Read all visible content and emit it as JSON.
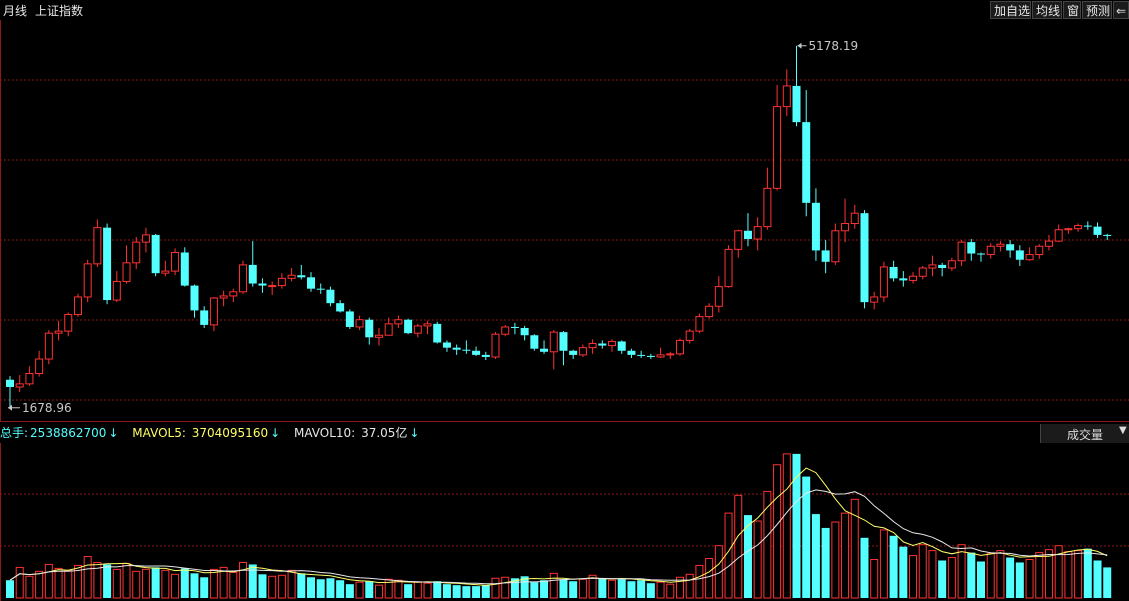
{
  "header": {
    "period": "月线",
    "index_name": "上证指数",
    "buttons": [
      "加自选",
      "均线",
      "窗",
      "预测"
    ],
    "back_arrow": "⇐"
  },
  "chart_data": {
    "type": "candlestick",
    "period": "monthly",
    "high_annotation": "5178.19",
    "low_annotation": "1678.96",
    "y_range": [
      1580,
      5350
    ],
    "candles": [
      [
        1950,
        1880,
        1985,
        1678.96
      ],
      [
        1880,
        1910,
        1995,
        1830
      ],
      [
        1910,
        2010,
        2080,
        1890
      ],
      [
        2010,
        2150,
        2230,
        1980
      ],
      [
        2150,
        2400,
        2430,
        2100
      ],
      [
        2400,
        2420,
        2520,
        2330
      ],
      [
        2420,
        2580,
        2600,
        2370
      ],
      [
        2580,
        2750,
        2780,
        2560
      ],
      [
        2750,
        3070,
        3110,
        2700
      ],
      [
        3070,
        3420,
        3500,
        3040
      ],
      [
        3420,
        2720,
        3460,
        2680
      ],
      [
        2720,
        2900,
        3000,
        2700
      ],
      [
        2900,
        3080,
        3250,
        2880
      ],
      [
        3080,
        3280,
        3330,
        3020
      ],
      [
        3280,
        3350,
        3420,
        3180
      ],
      [
        3350,
        2980,
        3360,
        2950
      ],
      [
        2980,
        3000,
        3100,
        2950
      ],
      [
        3000,
        3180,
        3220,
        2960
      ],
      [
        3180,
        2860,
        3230,
        2850
      ],
      [
        2860,
        2620,
        2870,
        2550
      ],
      [
        2620,
        2480,
        2660,
        2450
      ],
      [
        2480,
        2740,
        2750,
        2420
      ],
      [
        2740,
        2760,
        2810,
        2660
      ],
      [
        2760,
        2800,
        2830,
        2700
      ],
      [
        2800,
        3060,
        3100,
        2780
      ],
      [
        3060,
        2880,
        3290,
        2850
      ],
      [
        2880,
        2860,
        2930,
        2790
      ],
      [
        2860,
        2860,
        2900,
        2770
      ],
      [
        2860,
        2930,
        2980,
        2830
      ],
      [
        2930,
        2960,
        3030,
        2900
      ],
      [
        2960,
        2940,
        3060,
        2920
      ],
      [
        2940,
        2830,
        2990,
        2800
      ],
      [
        2830,
        2820,
        2880,
        2780
      ],
      [
        2820,
        2690,
        2850,
        2660
      ],
      [
        2690,
        2610,
        2720,
        2600
      ],
      [
        2610,
        2460,
        2630,
        2440
      ],
      [
        2460,
        2530,
        2570,
        2430
      ],
      [
        2530,
        2360,
        2550,
        2290
      ],
      [
        2360,
        2380,
        2450,
        2280
      ],
      [
        2380,
        2490,
        2550,
        2380
      ],
      [
        2490,
        2530,
        2570,
        2450
      ],
      [
        2530,
        2400,
        2540,
        2390
      ],
      [
        2400,
        2470,
        2490,
        2360
      ],
      [
        2470,
        2490,
        2520,
        2390
      ],
      [
        2490,
        2310,
        2510,
        2300
      ],
      [
        2310,
        2260,
        2330,
        2220
      ],
      [
        2260,
        2240,
        2290,
        2190
      ],
      [
        2240,
        2230,
        2330,
        2200
      ],
      [
        2230,
        2190,
        2270,
        2180
      ],
      [
        2190,
        2170,
        2220,
        2140
      ],
      [
        2170,
        2390,
        2410,
        2150
      ],
      [
        2390,
        2460,
        2480,
        2370
      ],
      [
        2460,
        2450,
        2500,
        2390
      ],
      [
        2450,
        2380,
        2470,
        2330
      ],
      [
        2380,
        2250,
        2390,
        2230
      ],
      [
        2250,
        2220,
        2330,
        2200
      ],
      [
        2220,
        2410,
        2430,
        2050
      ],
      [
        2410,
        2230,
        2420,
        2090
      ],
      [
        2230,
        2190,
        2240,
        2150
      ],
      [
        2190,
        2260,
        2290,
        2170
      ],
      [
        2260,
        2300,
        2340,
        2200
      ],
      [
        2300,
        2280,
        2330,
        2250
      ],
      [
        2280,
        2320,
        2340,
        2220
      ],
      [
        2320,
        2230,
        2330,
        2200
      ],
      [
        2230,
        2190,
        2250,
        2160
      ],
      [
        2190,
        2180,
        2230,
        2160
      ],
      [
        2180,
        2170,
        2200,
        2150
      ],
      [
        2170,
        2190,
        2260,
        2160
      ],
      [
        2190,
        2200,
        2220,
        2150
      ],
      [
        2200,
        2330,
        2350,
        2180
      ],
      [
        2330,
        2420,
        2440,
        2300
      ],
      [
        2420,
        2560,
        2590,
        2400
      ],
      [
        2560,
        2660,
        2690,
        2540
      ],
      [
        2660,
        2850,
        2950,
        2600
      ],
      [
        2850,
        3210,
        3250,
        2840
      ],
      [
        3210,
        3390,
        3400,
        3130
      ],
      [
        3390,
        3310,
        3560,
        3240
      ],
      [
        3310,
        3430,
        3520,
        3200
      ],
      [
        3430,
        3800,
        4000,
        3400
      ],
      [
        3800,
        4590,
        4800,
        3780
      ],
      [
        4590,
        4790,
        4950,
        4500
      ],
      [
        4790,
        4440,
        5178.19,
        4400
      ],
      [
        4440,
        3660,
        4750,
        3530
      ],
      [
        3660,
        3200,
        3800,
        3100
      ],
      [
        3200,
        3090,
        3300,
        2980
      ],
      [
        3090,
        3390,
        3460,
        3060
      ],
      [
        3390,
        3460,
        3700,
        3280
      ],
      [
        3460,
        3560,
        3640,
        3410
      ],
      [
        3560,
        2700,
        3590,
        2640
      ],
      [
        2700,
        2750,
        2800,
        2630
      ],
      [
        2750,
        3040,
        3090,
        2700
      ],
      [
        3040,
        2930,
        3100,
        2900
      ],
      [
        2930,
        2910,
        3000,
        2850
      ],
      [
        2910,
        2950,
        2990,
        2880
      ],
      [
        2950,
        3030,
        3050,
        2920
      ],
      [
        3030,
        3060,
        3150,
        2950
      ],
      [
        3060,
        3030,
        3080,
        2950
      ],
      [
        3030,
        3100,
        3130,
        3000
      ],
      [
        3100,
        3280,
        3300,
        3050
      ],
      [
        3280,
        3170,
        3310,
        3100
      ],
      [
        3170,
        3160,
        3180,
        3090
      ],
      [
        3160,
        3240,
        3270,
        3120
      ],
      [
        3240,
        3260,
        3290,
        3190
      ],
      [
        3260,
        3200,
        3300,
        3130
      ],
      [
        3200,
        3110,
        3250,
        3050
      ],
      [
        3110,
        3160,
        3230,
        3100
      ],
      [
        3160,
        3240,
        3260,
        3120
      ],
      [
        3240,
        3290,
        3350,
        3200
      ],
      [
        3290,
        3400,
        3450,
        3280
      ],
      [
        3400,
        3410,
        3420,
        3360
      ],
      [
        3410,
        3440,
        3460,
        3380
      ],
      [
        3440,
        3430,
        3480,
        3400
      ],
      [
        3430,
        3350,
        3470,
        3320
      ],
      [
        3350,
        3340,
        3360,
        3300
      ]
    ],
    "volume": {
      "label": "总手:",
      "total": "2538862700",
      "mavol5_label": "MAVOL5:",
      "mavol5": "3704095160",
      "mavol10_label": "MAVOL10:",
      "mavol10": "37.05亿",
      "trend_arrow": "↓",
      "dropdown": "成交量",
      "dropdown_arrow": "▼",
      "max": 15.5,
      "values": [
        1.8,
        3.1,
        2.2,
        2.7,
        3.4,
        3.0,
        2.8,
        3.3,
        4.2,
        3.6,
        3.4,
        2.9,
        3.5,
        2.7,
        2.9,
        3.1,
        2.8,
        2.4,
        3.0,
        2.5,
        2.1,
        2.9,
        3.1,
        2.6,
        3.6,
        3.4,
        2.4,
        2.2,
        2.3,
        2.8,
        2.5,
        2.1,
        1.9,
        2.0,
        1.8,
        1.4,
        1.6,
        1.7,
        1.3,
        1.9,
        1.8,
        1.4,
        1.6,
        1.5,
        1.7,
        1.4,
        1.3,
        1.2,
        1.2,
        1.3,
        2.0,
        2.1,
        2.0,
        2.2,
        1.6,
        1.8,
        2.5,
        1.9,
        1.7,
        1.9,
        2.3,
        2.0,
        1.8,
        1.9,
        1.7,
        1.8,
        1.5,
        1.6,
        1.4,
        2.1,
        2.4,
        3.3,
        4.0,
        5.3,
        8.6,
        10.4,
        8.4,
        7.8,
        10.8,
        13.5,
        14.6,
        14.6,
        12.3,
        8.5,
        7.1,
        7.7,
        8.6,
        10.0,
        6.1,
        3.9,
        6.9,
        6.3,
        5.2,
        4.3,
        5.4,
        4.8,
        3.8,
        4.1,
        5.4,
        4.6,
        3.7,
        4.5,
        4.8,
        4.1,
        3.6,
        3.9,
        4.6,
        4.9,
        5.3,
        4.7,
        4.8,
        5.0,
        3.8,
        3.1
      ]
    }
  },
  "colors": {
    "up": "#ff3232",
    "down": "#54ffff",
    "grid": "#8b1a1a",
    "mavol5": "#ffff66",
    "mavol10": "#e8e8e8",
    "annotation": "#c8c8c8"
  }
}
